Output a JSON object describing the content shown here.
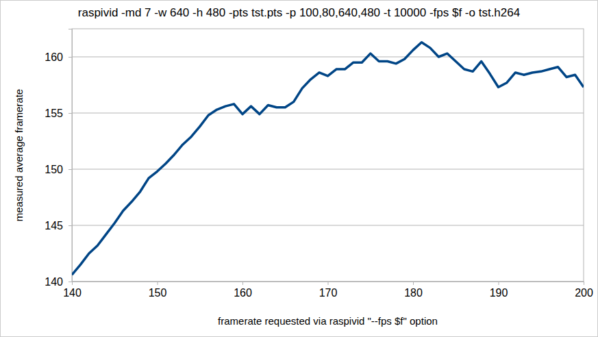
{
  "chart_data": {
    "type": "line",
    "title": "raspivid -md 7 -w 640 -h 480 -pts tst.pts -p 100,80,640,480 -t 10000 -fps $f -o tst.h264",
    "x_label": "framerate requested via raspivid \"--fps $f\" option",
    "y_label": "measured average framerate",
    "x": [
      140,
      141,
      142,
      143,
      144,
      145,
      146,
      147,
      148,
      149,
      150,
      151,
      152,
      153,
      154,
      155,
      156,
      157,
      158,
      159,
      160,
      161,
      162,
      163,
      164,
      165,
      166,
      167,
      168,
      169,
      170,
      171,
      172,
      173,
      174,
      175,
      176,
      177,
      178,
      179,
      180,
      181,
      182,
      183,
      184,
      185,
      186,
      187,
      188,
      189,
      190,
      191,
      192,
      193,
      194,
      195,
      196,
      197,
      198,
      199,
      200
    ],
    "values": [
      140.6,
      141.5,
      142.5,
      143.2,
      144.2,
      145.2,
      146.3,
      147.1,
      148.0,
      149.2,
      149.8,
      150.5,
      151.3,
      152.2,
      152.9,
      153.8,
      154.8,
      155.3,
      155.6,
      155.8,
      154.9,
      155.6,
      154.9,
      155.7,
      155.5,
      155.5,
      156.0,
      157.2,
      158.0,
      158.6,
      158.3,
      158.9,
      158.9,
      159.5,
      159.5,
      160.3,
      159.6,
      159.6,
      159.4,
      159.8,
      160.6,
      161.3,
      160.8,
      160.0,
      160.3,
      159.6,
      158.9,
      158.7,
      159.6,
      158.5,
      157.3,
      157.7,
      158.6,
      158.4,
      158.6,
      158.7,
      158.9,
      159.1,
      158.2,
      158.4,
      157.3
    ],
    "color": "#004586",
    "xlim": [
      140,
      200
    ],
    "xticks": [
      140,
      150,
      160,
      170,
      180,
      190,
      200
    ],
    "ylim": [
      140,
      162.5
    ],
    "yticks": [
      140,
      145,
      150,
      155,
      160
    ],
    "grid": true
  }
}
